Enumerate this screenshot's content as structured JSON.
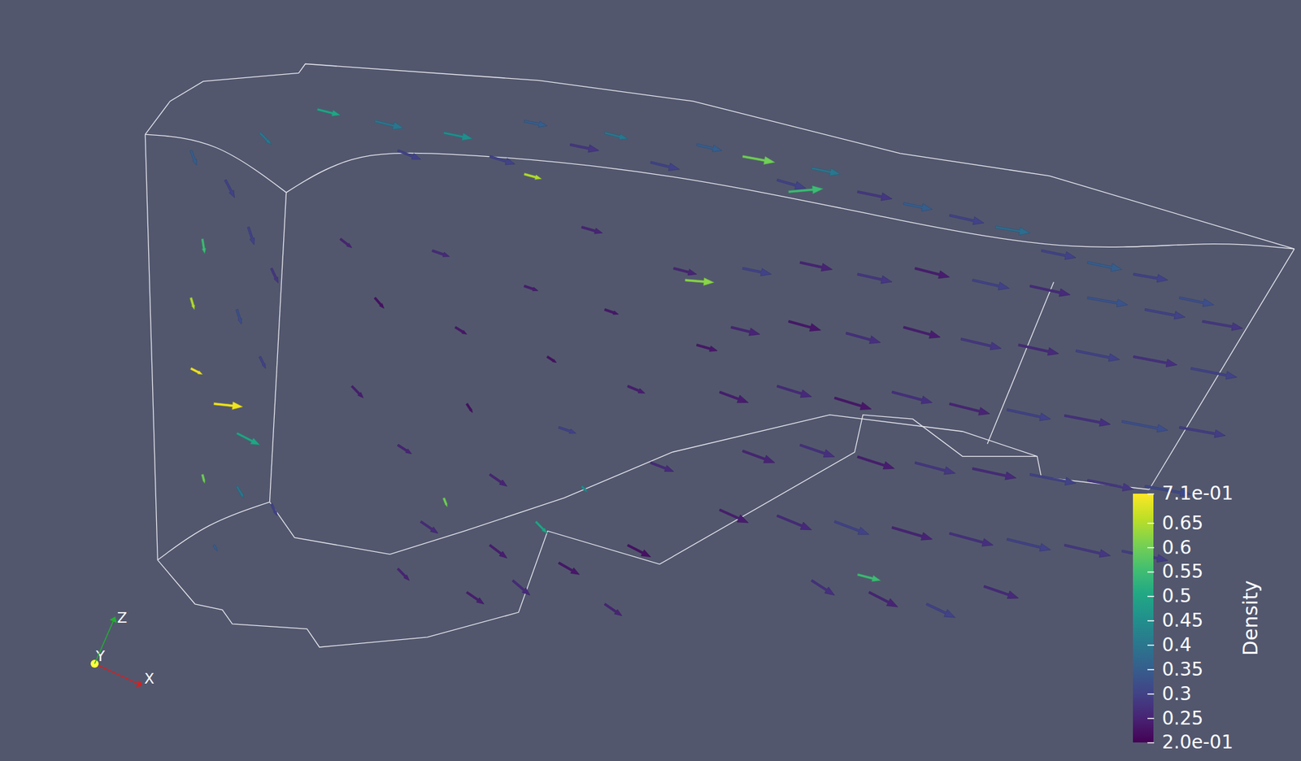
{
  "chart_data": {
    "type": "vector_field",
    "tick_labels": false,
    "xlim": [
      0,
      100
    ],
    "ylim": [
      0,
      100
    ],
    "colorbar": {
      "title": "Density",
      "range": [
        0.2,
        0.71
      ],
      "ticks": [
        {
          "value": 0.71,
          "label": "7.1e-01"
        },
        0.65,
        0.6,
        0.55,
        0.5,
        0.45,
        0.4,
        0.35,
        0.3,
        0.25,
        {
          "value": 0.2,
          "label": "2.0e-01"
        }
      ]
    },
    "triad_labels": [
      "X",
      "Y",
      "Z"
    ],
    "vectors": [
      {
        "x": 4,
        "y": 85,
        "u": 0.5,
        "v": -2.5,
        "density": 0.35
      },
      {
        "x": 7,
        "y": 80,
        "u": 0.8,
        "v": -3,
        "density": 0.3
      },
      {
        "x": 10,
        "y": 88,
        "u": 1,
        "v": -2,
        "density": 0.4
      },
      {
        "x": 5,
        "y": 70,
        "u": 0.2,
        "v": -2.5,
        "density": 0.55
      },
      {
        "x": 9,
        "y": 72,
        "u": 0.5,
        "v": -3,
        "density": 0.3
      },
      {
        "x": 4,
        "y": 60,
        "u": 0.3,
        "v": -2,
        "density": 0.65
      },
      {
        "x": 8,
        "y": 58,
        "u": 0.4,
        "v": -2.5,
        "density": 0.32
      },
      {
        "x": 11,
        "y": 65,
        "u": 0.6,
        "v": -2.5,
        "density": 0.28
      },
      {
        "x": 4,
        "y": 48,
        "u": 1,
        "v": -1,
        "density": 0.7
      },
      {
        "x": 6,
        "y": 42,
        "u": 2.5,
        "v": -0.5,
        "density": 0.7
      },
      {
        "x": 8,
        "y": 37,
        "u": 2,
        "v": -2,
        "density": 0.5
      },
      {
        "x": 10,
        "y": 50,
        "u": 0.5,
        "v": -2,
        "density": 0.3
      },
      {
        "x": 5,
        "y": 30,
        "u": 0.2,
        "v": -1.5,
        "density": 0.6
      },
      {
        "x": 8,
        "y": 28,
        "u": 0.6,
        "v": -2,
        "density": 0.4
      },
      {
        "x": 11,
        "y": 25,
        "u": 0.5,
        "v": -2,
        "density": 0.3
      },
      {
        "x": 6,
        "y": 18,
        "u": 0.3,
        "v": -1,
        "density": 0.35
      },
      {
        "x": 15,
        "y": 92,
        "u": 2,
        "v": -1,
        "density": 0.5
      },
      {
        "x": 20,
        "y": 90,
        "u": 2.5,
        "v": -1.2,
        "density": 0.4
      },
      {
        "x": 22,
        "y": 85,
        "u": 2,
        "v": -1.5,
        "density": 0.3
      },
      {
        "x": 26,
        "y": 88,
        "u": 2.5,
        "v": -1,
        "density": 0.45
      },
      {
        "x": 30,
        "y": 84,
        "u": 2.2,
        "v": -1.3,
        "density": 0.3
      },
      {
        "x": 33,
        "y": 90,
        "u": 2,
        "v": -0.8,
        "density": 0.35
      },
      {
        "x": 37,
        "y": 86,
        "u": 2.5,
        "v": -1,
        "density": 0.28
      },
      {
        "x": 40,
        "y": 88,
        "u": 2,
        "v": -1,
        "density": 0.4
      },
      {
        "x": 44,
        "y": 83,
        "u": 2.5,
        "v": -1.2,
        "density": 0.3
      },
      {
        "x": 48,
        "y": 86,
        "u": 2.2,
        "v": -1,
        "density": 0.35
      },
      {
        "x": 52,
        "y": 84,
        "u": 2.8,
        "v": -1,
        "density": 0.6
      },
      {
        "x": 55,
        "y": 80,
        "u": 2.5,
        "v": -1.4,
        "density": 0.3
      },
      {
        "x": 58,
        "y": 82,
        "u": 2.5,
        "v": -1,
        "density": 0.4
      },
      {
        "x": 62,
        "y": 78,
        "u": 3,
        "v": -1.2,
        "density": 0.28
      },
      {
        "x": 66,
        "y": 76,
        "u": 2.5,
        "v": -1,
        "density": 0.35
      },
      {
        "x": 70,
        "y": 74,
        "u": 3,
        "v": -1.3,
        "density": 0.3
      },
      {
        "x": 74,
        "y": 72,
        "u": 3,
        "v": -1,
        "density": 0.38
      },
      {
        "x": 78,
        "y": 68,
        "u": 3,
        "v": -1.2,
        "density": 0.3
      },
      {
        "x": 82,
        "y": 66,
        "u": 3,
        "v": -1.2,
        "density": 0.35
      },
      {
        "x": 86,
        "y": 64,
        "u": 3,
        "v": -1,
        "density": 0.3
      },
      {
        "x": 90,
        "y": 60,
        "u": 3,
        "v": -1.2,
        "density": 0.32
      },
      {
        "x": 17,
        "y": 70,
        "u": 1,
        "v": -1.5,
        "density": 0.25
      },
      {
        "x": 20,
        "y": 60,
        "u": 0.8,
        "v": -1.8,
        "density": 0.22
      },
      {
        "x": 18,
        "y": 45,
        "u": 1,
        "v": -2,
        "density": 0.24
      },
      {
        "x": 22,
        "y": 35,
        "u": 1.2,
        "v": -1.5,
        "density": 0.25
      },
      {
        "x": 25,
        "y": 68,
        "u": 1.5,
        "v": -1,
        "density": 0.26
      },
      {
        "x": 27,
        "y": 55,
        "u": 1,
        "v": -1.2,
        "density": 0.23
      },
      {
        "x": 28,
        "y": 42,
        "u": 0.5,
        "v": -1.5,
        "density": 0.22
      },
      {
        "x": 30,
        "y": 30,
        "u": 1.5,
        "v": -2,
        "density": 0.25
      },
      {
        "x": 33,
        "y": 62,
        "u": 1.2,
        "v": -0.8,
        "density": 0.24
      },
      {
        "x": 35,
        "y": 50,
        "u": 0.8,
        "v": -1,
        "density": 0.22
      },
      {
        "x": 36,
        "y": 38,
        "u": 1.5,
        "v": -1,
        "density": 0.3
      },
      {
        "x": 38,
        "y": 72,
        "u": 1.8,
        "v": -1,
        "density": 0.25
      },
      {
        "x": 40,
        "y": 58,
        "u": 1.2,
        "v": -0.8,
        "density": 0.23
      },
      {
        "x": 42,
        "y": 45,
        "u": 1.5,
        "v": -1.2,
        "density": 0.24
      },
      {
        "x": 44,
        "y": 32,
        "u": 2,
        "v": -1.5,
        "density": 0.26
      },
      {
        "x": 46,
        "y": 65,
        "u": 2,
        "v": -1,
        "density": 0.25
      },
      {
        "x": 48,
        "y": 52,
        "u": 1.8,
        "v": -1,
        "density": 0.23
      },
      {
        "x": 24,
        "y": 22,
        "u": 1.5,
        "v": -2,
        "density": 0.26
      },
      {
        "x": 30,
        "y": 18,
        "u": 1.5,
        "v": -2.2,
        "density": 0.24
      },
      {
        "x": 34,
        "y": 22,
        "u": 1,
        "v": -2,
        "density": 0.5
      },
      {
        "x": 26,
        "y": 26,
        "u": 0.3,
        "v": -1.5,
        "density": 0.6
      },
      {
        "x": 38,
        "y": 28,
        "u": 0.5,
        "v": -1,
        "density": 0.45
      },
      {
        "x": 22,
        "y": 14,
        "u": 1,
        "v": -2,
        "density": 0.25
      },
      {
        "x": 28,
        "y": 10,
        "u": 1.5,
        "v": -2,
        "density": 0.24
      },
      {
        "x": 32,
        "y": 12,
        "u": 1.5,
        "v": -2.5,
        "density": 0.26
      },
      {
        "x": 36,
        "y": 15,
        "u": 1.8,
        "v": -2,
        "density": 0.23
      },
      {
        "x": 40,
        "y": 8,
        "u": 1.5,
        "v": -2,
        "density": 0.25
      },
      {
        "x": 42,
        "y": 18,
        "u": 2,
        "v": -2,
        "density": 0.22
      },
      {
        "x": 52,
        "y": 65,
        "u": 2.5,
        "v": -1,
        "density": 0.3
      },
      {
        "x": 57,
        "y": 66,
        "u": 2.8,
        "v": -1.2,
        "density": 0.25
      },
      {
        "x": 62,
        "y": 64,
        "u": 3,
        "v": -1.3,
        "density": 0.28
      },
      {
        "x": 67,
        "y": 65,
        "u": 3,
        "v": -1.5,
        "density": 0.24
      },
      {
        "x": 72,
        "y": 63,
        "u": 3.2,
        "v": -1.4,
        "density": 0.3
      },
      {
        "x": 77,
        "y": 62,
        "u": 3.5,
        "v": -1.5,
        "density": 0.26
      },
      {
        "x": 82,
        "y": 60,
        "u": 3.5,
        "v": -1.2,
        "density": 0.33
      },
      {
        "x": 87,
        "y": 58,
        "u": 3.5,
        "v": -1.3,
        "density": 0.3
      },
      {
        "x": 92,
        "y": 56,
        "u": 3.5,
        "v": -1.2,
        "density": 0.28
      },
      {
        "x": 51,
        "y": 55,
        "u": 2.5,
        "v": -1.2,
        "density": 0.25
      },
      {
        "x": 56,
        "y": 56,
        "u": 2.8,
        "v": -1.5,
        "density": 0.23
      },
      {
        "x": 61,
        "y": 54,
        "u": 3,
        "v": -1.6,
        "density": 0.27
      },
      {
        "x": 66,
        "y": 55,
        "u": 3.2,
        "v": -1.7,
        "density": 0.24
      },
      {
        "x": 71,
        "y": 53,
        "u": 3.5,
        "v": -1.6,
        "density": 0.28
      },
      {
        "x": 76,
        "y": 52,
        "u": 3.5,
        "v": -1.5,
        "density": 0.26
      },
      {
        "x": 81,
        "y": 51,
        "u": 3.8,
        "v": -1.5,
        "density": 0.3
      },
      {
        "x": 86,
        "y": 50,
        "u": 3.8,
        "v": -1.4,
        "density": 0.27
      },
      {
        "x": 91,
        "y": 48,
        "u": 4,
        "v": -1.5,
        "density": 0.3
      },
      {
        "x": 50,
        "y": 44,
        "u": 2.5,
        "v": -1.8,
        "density": 0.24
      },
      {
        "x": 55,
        "y": 45,
        "u": 3,
        "v": -1.8,
        "density": 0.26
      },
      {
        "x": 60,
        "y": 43,
        "u": 3.2,
        "v": -1.9,
        "density": 0.23
      },
      {
        "x": 65,
        "y": 44,
        "u": 3.5,
        "v": -1.8,
        "density": 0.27
      },
      {
        "x": 70,
        "y": 42,
        "u": 3.5,
        "v": -1.7,
        "density": 0.25
      },
      {
        "x": 75,
        "y": 41,
        "u": 3.8,
        "v": -1.6,
        "density": 0.3
      },
      {
        "x": 80,
        "y": 40,
        "u": 4,
        "v": -1.5,
        "density": 0.27
      },
      {
        "x": 85,
        "y": 39,
        "u": 4,
        "v": -1.5,
        "density": 0.32
      },
      {
        "x": 90,
        "y": 38,
        "u": 4,
        "v": -1.4,
        "density": 0.29
      },
      {
        "x": 52,
        "y": 34,
        "u": 2.8,
        "v": -2,
        "density": 0.25
      },
      {
        "x": 57,
        "y": 35,
        "u": 3,
        "v": -2,
        "density": 0.27
      },
      {
        "x": 62,
        "y": 33,
        "u": 3.2,
        "v": -2,
        "density": 0.24
      },
      {
        "x": 67,
        "y": 32,
        "u": 3.5,
        "v": -1.8,
        "density": 0.28
      },
      {
        "x": 72,
        "y": 31,
        "u": 3.8,
        "v": -1.6,
        "density": 0.26
      },
      {
        "x": 77,
        "y": 30,
        "u": 4,
        "v": -1.5,
        "density": 0.3
      },
      {
        "x": 82,
        "y": 29,
        "u": 4,
        "v": -1.5,
        "density": 0.28
      },
      {
        "x": 87,
        "y": 28,
        "u": 4,
        "v": -1.4,
        "density": 0.31
      },
      {
        "x": 50,
        "y": 24,
        "u": 2.5,
        "v": -2.2,
        "density": 0.24
      },
      {
        "x": 55,
        "y": 23,
        "u": 3,
        "v": -2.4,
        "density": 0.26
      },
      {
        "x": 60,
        "y": 22,
        "u": 3,
        "v": -2.2,
        "density": 0.3
      },
      {
        "x": 65,
        "y": 21,
        "u": 3.5,
        "v": -2,
        "density": 0.25
      },
      {
        "x": 70,
        "y": 20,
        "u": 3.8,
        "v": -2,
        "density": 0.27
      },
      {
        "x": 75,
        "y": 19,
        "u": 3.8,
        "v": -1.8,
        "density": 0.3
      },
      {
        "x": 80,
        "y": 18,
        "u": 4,
        "v": -1.8,
        "density": 0.28
      },
      {
        "x": 85,
        "y": 17,
        "u": 4,
        "v": -1.6,
        "density": 0.29
      },
      {
        "x": 58,
        "y": 12,
        "u": 2,
        "v": -2.5,
        "density": 0.27
      },
      {
        "x": 63,
        "y": 10,
        "u": 2.5,
        "v": -2.5,
        "density": 0.25
      },
      {
        "x": 68,
        "y": 8,
        "u": 2.5,
        "v": -2.3,
        "density": 0.3
      },
      {
        "x": 73,
        "y": 11,
        "u": 3,
        "v": -2,
        "density": 0.26
      },
      {
        "x": 56,
        "y": 78,
        "u": 3,
        "v": 0.5,
        "density": 0.55
      },
      {
        "x": 47,
        "y": 63,
        "u": 2.5,
        "v": -0.4,
        "density": 0.62
      },
      {
        "x": 33,
        "y": 81,
        "u": 1.5,
        "v": -0.8,
        "density": 0.65
      },
      {
        "x": 62,
        "y": 13,
        "u": 2,
        "v": -1,
        "density": 0.55
      }
    ]
  }
}
